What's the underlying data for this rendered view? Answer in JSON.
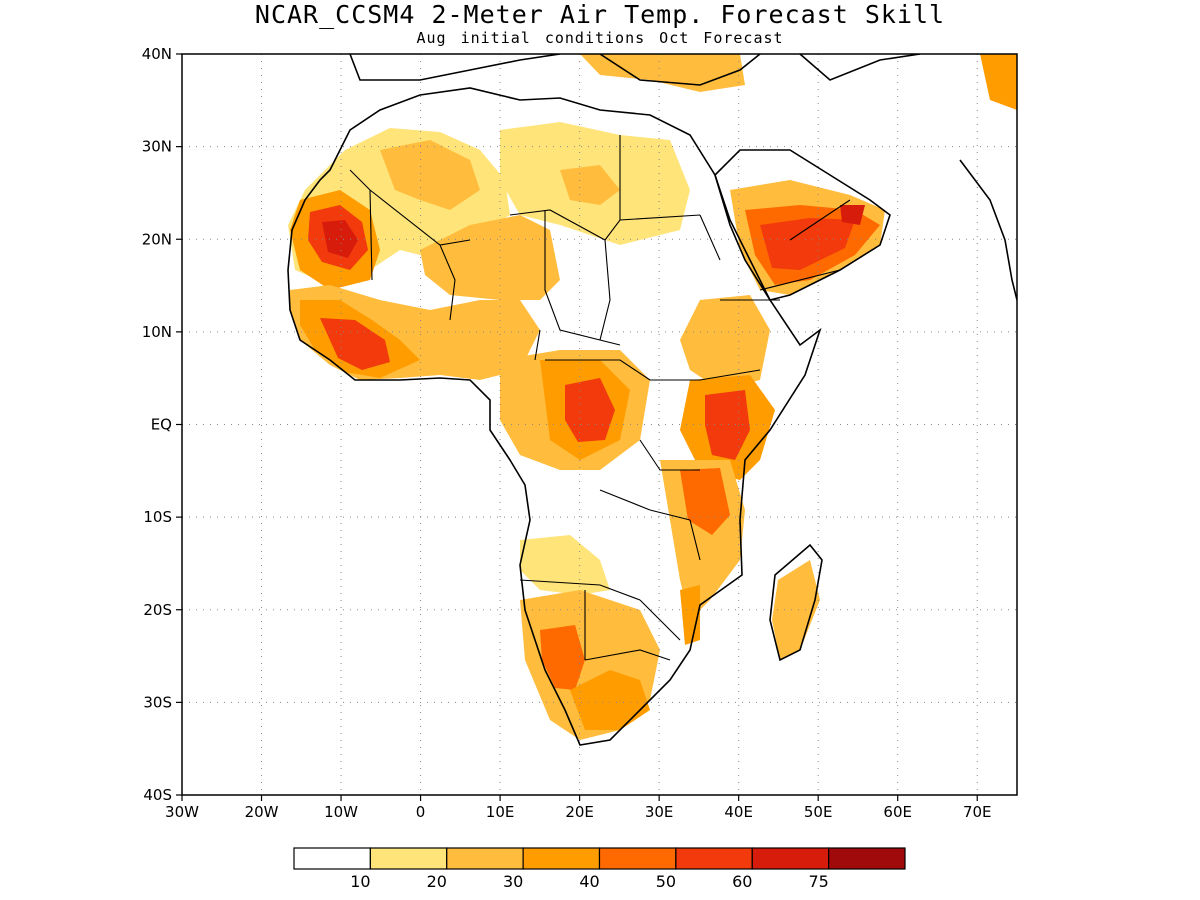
{
  "title": "NCAR_CCSM4 2-Meter Air Temp. Forecast Skill",
  "subtitle": "Aug initial conditions  Oct Forecast",
  "map": {
    "lat_range": [
      -40,
      40
    ],
    "lon_range": [
      -30,
      75
    ],
    "lat_labels": [
      "40N",
      "30N",
      "20N",
      "10N",
      "EQ",
      "10S",
      "20S",
      "30S",
      "40S"
    ],
    "lon_labels": [
      "30W",
      "20W",
      "10W",
      "0",
      "10E",
      "20E",
      "30E",
      "40E",
      "50E",
      "60E",
      "70E"
    ],
    "grid": true
  },
  "colorbar": {
    "colors": [
      "#ffffff",
      "#ffe47a",
      "#ffbc3d",
      "#ff9c00",
      "#ff6a00",
      "#f23a0c",
      "#d81c0c",
      "#a10a0a"
    ],
    "labels": [
      "10",
      "20",
      "30",
      "40",
      "50",
      "60",
      "75"
    ]
  }
}
